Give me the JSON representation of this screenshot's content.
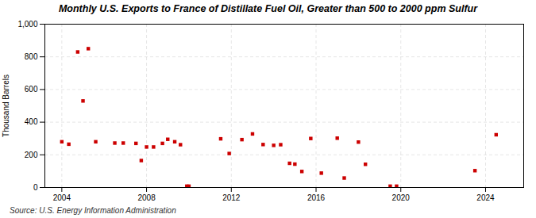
{
  "chart_data": {
    "type": "scatter",
    "title": "Monthly U.S. Exports to France of Distillate Fuel Oil, Greater than 500 to 2000 ppm Sulfur",
    "ylabel": "Thousand Barrels",
    "source": "Source: U.S. Energy Information Administration",
    "color": "#cc0000",
    "marker": "square",
    "grid": true,
    "xlim": [
      2003.2,
      2025.8
    ],
    "xticks": [
      2004,
      2008,
      2012,
      2016,
      2020,
      2024
    ],
    "ylim": [
      0,
      1000
    ],
    "yticks": [
      0,
      200,
      400,
      600,
      800,
      {
        "value": 1000,
        "label": "1,000"
      }
    ],
    "x": [
      2004.0,
      2004.33,
      2004.75,
      2005.0,
      2005.25,
      2005.6,
      2006.5,
      2006.9,
      2007.5,
      2007.75,
      2008.0,
      2008.33,
      2008.75,
      2009.0,
      2009.33,
      2009.6,
      2009.9,
      2010.0,
      2011.5,
      2011.9,
      2012.5,
      2013.0,
      2013.5,
      2014.0,
      2014.33,
      2014.75,
      2015.0,
      2015.33,
      2015.75,
      2016.25,
      2017.0,
      2017.33,
      2018.0,
      2018.33,
      2019.5,
      2019.8,
      2023.5,
      2024.5
    ],
    "values": [
      280,
      265,
      830,
      530,
      850,
      280,
      272,
      272,
      270,
      165,
      248,
      248,
      270,
      295,
      280,
      262,
      8,
      8,
      298,
      208,
      293,
      328,
      263,
      258,
      262,
      148,
      143,
      98,
      300,
      88,
      302,
      58,
      278,
      142,
      8,
      8,
      103,
      323
    ]
  }
}
